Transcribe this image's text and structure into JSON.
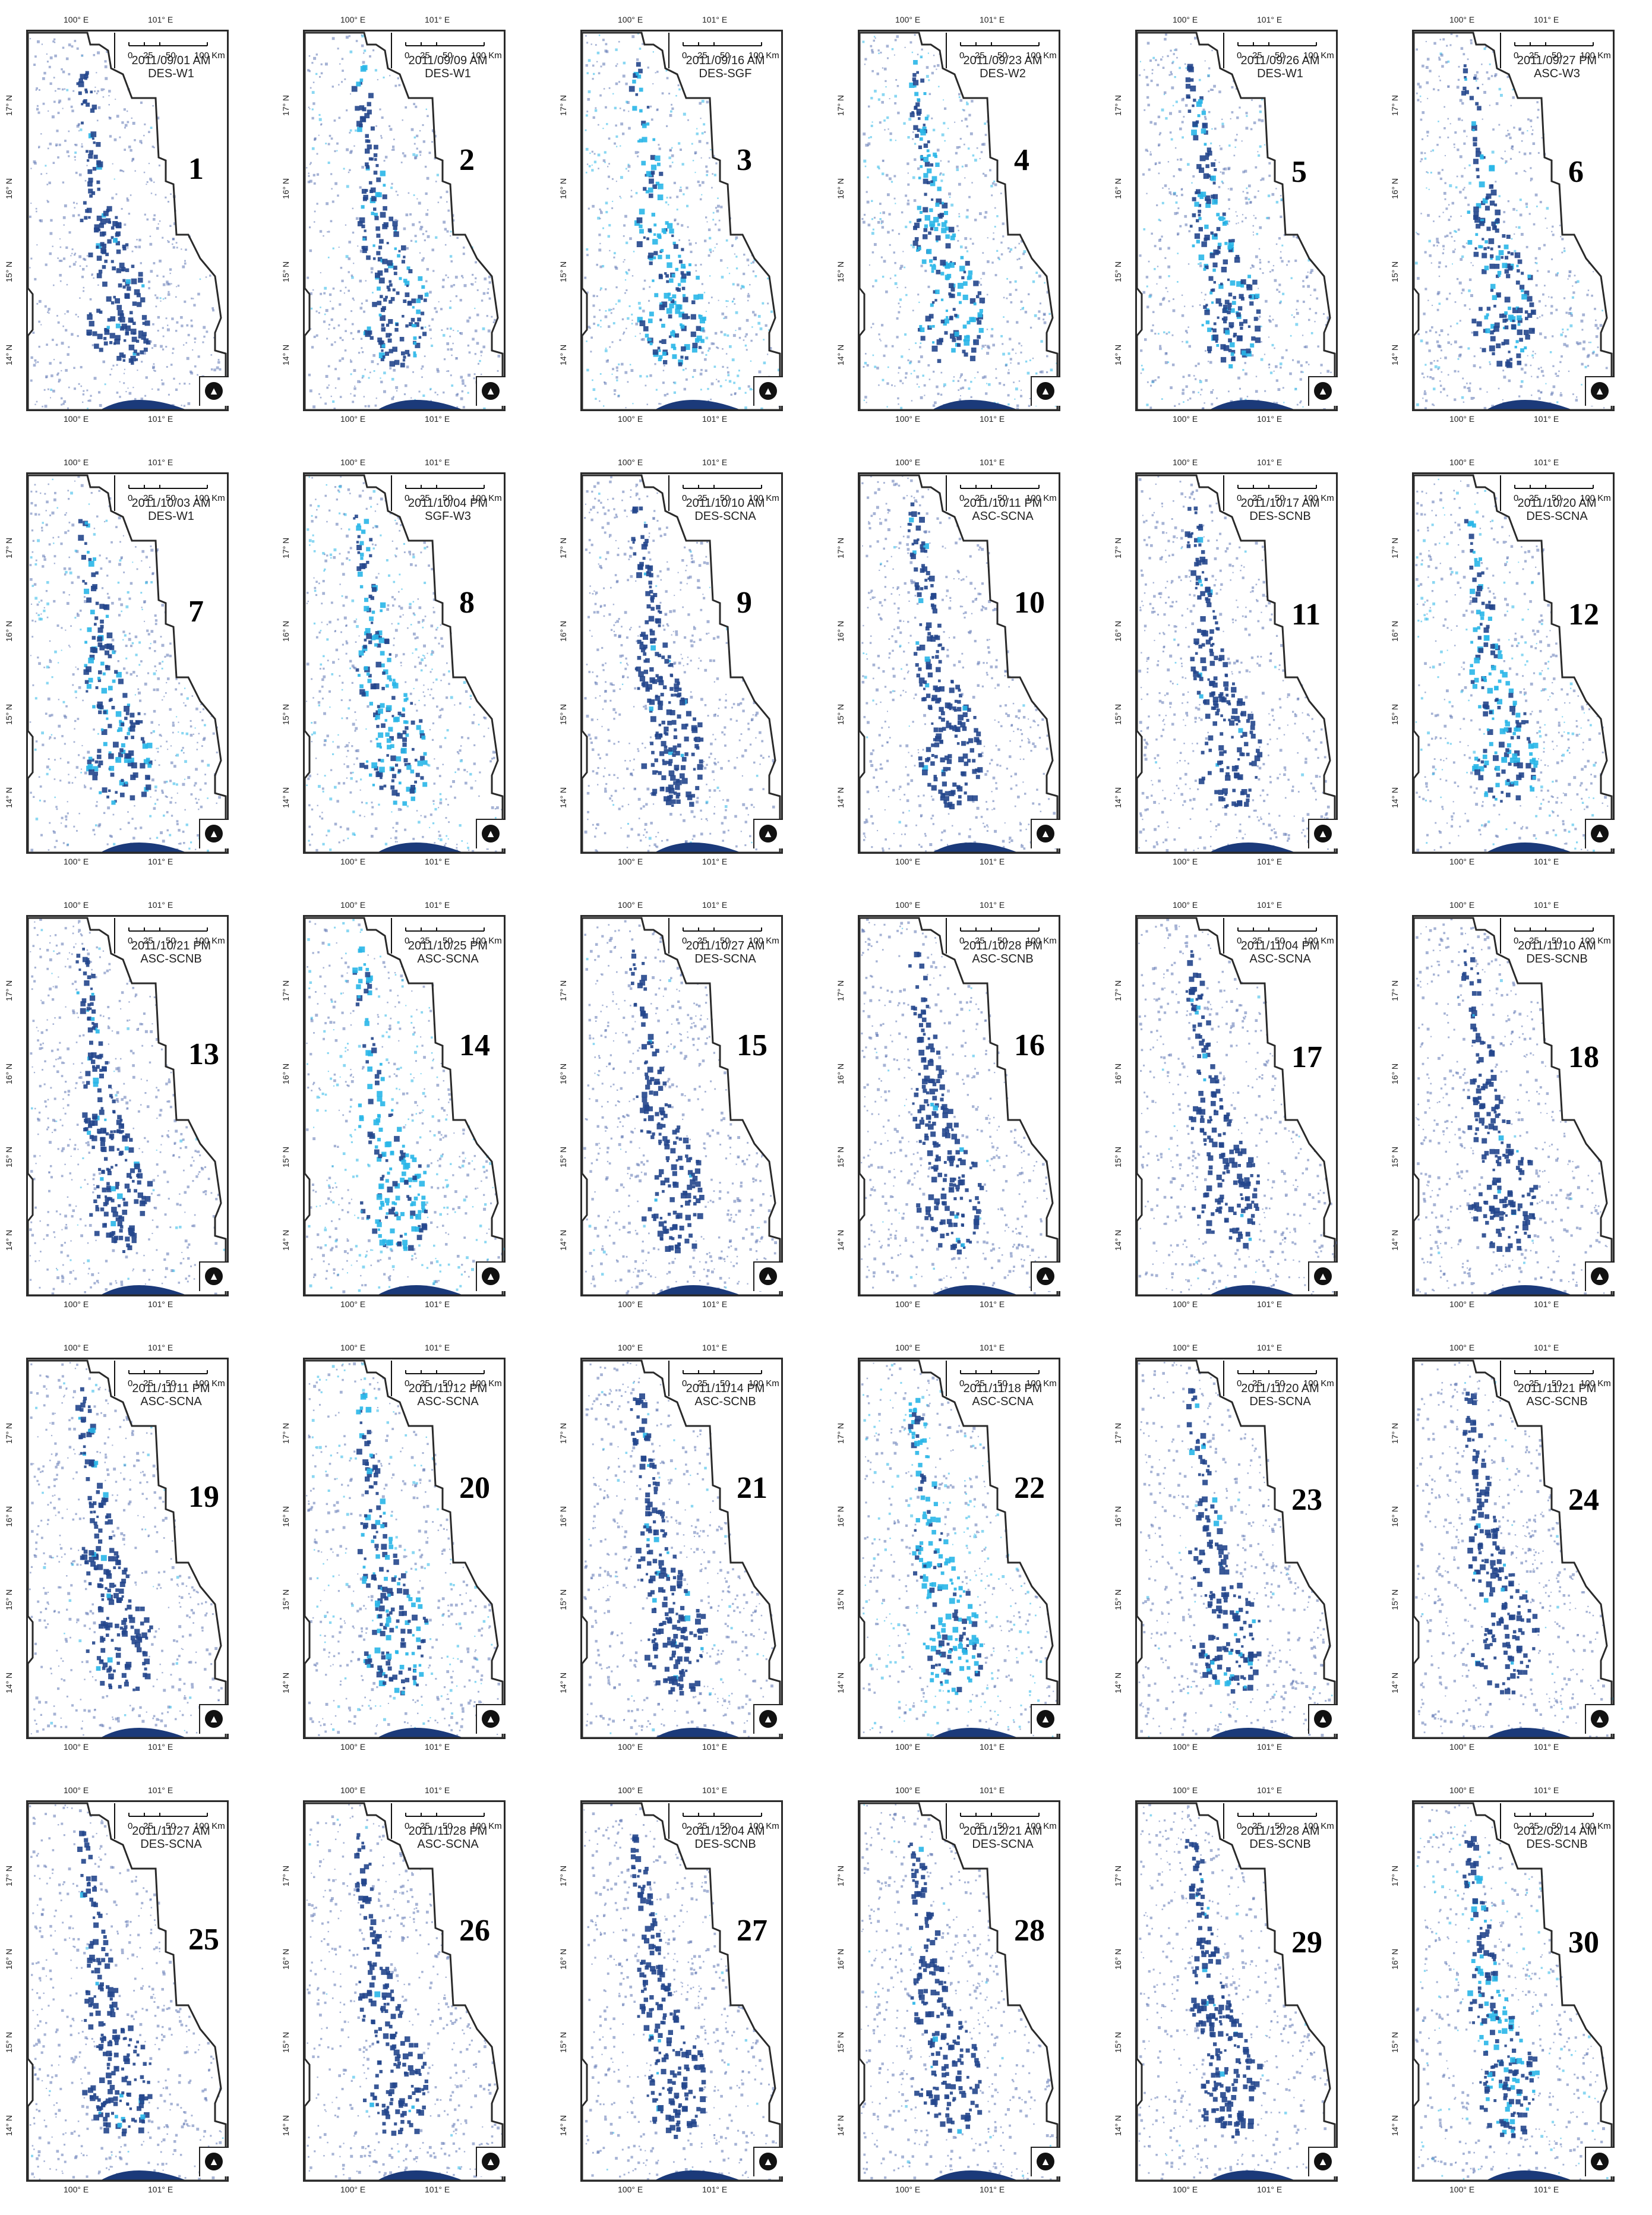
{
  "figure": {
    "colors": {
      "permanent_water": "#1b3a7a",
      "flood_dark": "#24468c",
      "flood_light": "#29b6e8",
      "boundary": "#2a2a2a",
      "background": "#ffffff"
    },
    "axis_labels": {
      "lon_left": "100° E",
      "lon_right": "101° E",
      "lat_17": "17° N",
      "lat_16": "16° N",
      "lat_15": "15° N",
      "lat_14": "14° N"
    },
    "scale_bar": {
      "t0": "0",
      "t25": "25",
      "t50": "50",
      "t100": "100 Km"
    },
    "north_arrow_icon": "north-arrow-icon",
    "panels": [
      {
        "num": "1",
        "date": "2011/09/01 AM",
        "mode": "DES-W1",
        "light": 0.05
      },
      {
        "num": "2",
        "date": "2011/09/09 AM",
        "mode": "DES-W1",
        "light": 0.25
      },
      {
        "num": "3",
        "date": "2011/09/16 AM",
        "mode": "DES-SGF",
        "light": 0.7
      },
      {
        "num": "4",
        "date": "2011/09/23 AM",
        "mode": "DES-W2",
        "light": 0.6
      },
      {
        "num": "5",
        "date": "2011/09/26 AM",
        "mode": "DES-W1",
        "light": 0.35
      },
      {
        "num": "6",
        "date": "2011/09/27 PM",
        "mode": "ASC-W3",
        "light": 0.3
      },
      {
        "num": "7",
        "date": "2011/10/03 AM",
        "mode": "DES-W1",
        "light": 0.35
      },
      {
        "num": "8",
        "date": "2011/10/04 PM",
        "mode": "SGF-W3",
        "light": 0.55
      },
      {
        "num": "9",
        "date": "2011/10/10 AM",
        "mode": "DES-SCNA",
        "light": 0.05
      },
      {
        "num": "10",
        "date": "2011/10/11 PM",
        "mode": "ASC-SCNA",
        "light": 0.05
      },
      {
        "num": "11",
        "date": "2011/10/17 AM",
        "mode": "DES-SCNB",
        "light": 0.05
      },
      {
        "num": "12",
        "date": "2011/10/20 AM",
        "mode": "DES-SCNA",
        "light": 0.5
      },
      {
        "num": "13",
        "date": "2011/10/21 PM",
        "mode": "ASC-SCNB",
        "light": 0.1
      },
      {
        "num": "14",
        "date": "2011/10/25 PM",
        "mode": "ASC-SCNA",
        "light": 0.75
      },
      {
        "num": "15",
        "date": "2011/10/27 AM",
        "mode": "DES-SCNA",
        "light": 0.05
      },
      {
        "num": "16",
        "date": "2011/10/28 PM",
        "mode": "ASC-SCNB",
        "light": 0.05
      },
      {
        "num": "17",
        "date": "2011/11/04 PM",
        "mode": "ASC-SCNA",
        "light": 0.05
      },
      {
        "num": "18",
        "date": "2011/11/10 AM",
        "mode": "DES-SCNB",
        "light": 0.05
      },
      {
        "num": "19",
        "date": "2011/11/11 PM",
        "mode": "ASC-SCNA",
        "light": 0.1
      },
      {
        "num": "20",
        "date": "2011/11/12 PM",
        "mode": "ASC-SCNA",
        "light": 0.45
      },
      {
        "num": "21",
        "date": "2011/11/14 PM",
        "mode": "ASC-SCNB",
        "light": 0.1
      },
      {
        "num": "22",
        "date": "2011/11/18 PM",
        "mode": "ASC-SCNA",
        "light": 0.7
      },
      {
        "num": "23",
        "date": "2011/11/20 AM",
        "mode": "DES-SCNA",
        "light": 0.1
      },
      {
        "num": "24",
        "date": "2011/11/21 PM",
        "mode": "ASC-SCNB",
        "light": 0.05
      },
      {
        "num": "25",
        "date": "2011/11/27 AM",
        "mode": "DES-SCNA",
        "light": 0.05
      },
      {
        "num": "26",
        "date": "2011/11/28 PM",
        "mode": "ASC-SCNA",
        "light": 0.05
      },
      {
        "num": "27",
        "date": "2011/12/04 AM",
        "mode": "DES-SCNB",
        "light": 0.05
      },
      {
        "num": "28",
        "date": "2011/12/21 AM",
        "mode": "DES-SCNA",
        "light": 0.05
      },
      {
        "num": "29",
        "date": "2011/12/28 AM",
        "mode": "DES-SCNB",
        "light": 0.05
      },
      {
        "num": "30",
        "date": "2012/02/14 AM",
        "mode": "DES-SCNB",
        "light": 0.35
      }
    ]
  }
}
